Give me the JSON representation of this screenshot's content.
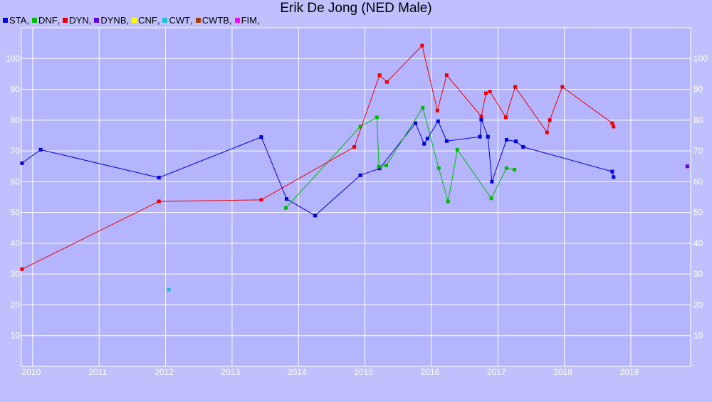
{
  "chart_data": {
    "type": "line",
    "title": "Erik De Jong (NED Male)",
    "xlabel": "",
    "ylabel": "",
    "xlim": [
      2009.83,
      2019.9
    ],
    "ylim": [
      0,
      110
    ],
    "x_ticks": [
      "2010",
      "2011",
      "2012",
      "2013",
      "2014",
      "2015",
      "2016",
      "2017",
      "2018",
      "2019"
    ],
    "y_ticks": [
      "10",
      "20",
      "30",
      "40",
      "50",
      "60",
      "70",
      "80",
      "90",
      "100"
    ],
    "grid": true,
    "legend_position": "top-left",
    "series": [
      {
        "name": "STA",
        "color": "#0000dd",
        "points": [
          [
            2009.84,
            66.0
          ],
          [
            2010.12,
            70.4
          ],
          [
            2011.9,
            61.3
          ],
          [
            2013.44,
            74.5
          ],
          [
            2013.82,
            54.4
          ],
          [
            2014.25,
            49.0
          ],
          [
            2014.93,
            62.1
          ],
          [
            2015.22,
            64.3
          ],
          [
            2015.76,
            79.0
          ],
          [
            2015.89,
            72.3
          ],
          [
            2015.94,
            74.0
          ],
          [
            2016.1,
            79.6
          ],
          [
            2016.23,
            73.2
          ],
          [
            2016.73,
            74.6
          ],
          [
            2016.75,
            80.2
          ],
          [
            2016.85,
            74.6
          ],
          [
            2016.91,
            60.0
          ],
          [
            2017.13,
            73.6
          ],
          [
            2017.27,
            73.1
          ],
          [
            2017.38,
            71.3
          ],
          [
            2018.72,
            63.3
          ],
          [
            2018.74,
            61.5
          ]
        ]
      },
      {
        "name": "DNF",
        "color": "#00bb00",
        "points": [
          [
            2013.81,
            51.5
          ],
          [
            2014.93,
            77.9
          ],
          [
            2015.18,
            80.9
          ],
          [
            2015.21,
            64.9
          ],
          [
            2015.32,
            65.3
          ],
          [
            2015.87,
            84.0
          ],
          [
            2016.11,
            64.4
          ],
          [
            2016.25,
            53.6
          ],
          [
            2016.39,
            70.4
          ],
          [
            2016.9,
            54.6
          ],
          [
            2017.13,
            64.4
          ],
          [
            2017.25,
            63.9
          ]
        ]
      },
      {
        "name": "DYN",
        "color": "#ee0000",
        "points": [
          [
            2009.84,
            31.6
          ],
          [
            2011.9,
            53.6
          ],
          [
            2013.44,
            54.1
          ],
          [
            2014.84,
            71.3
          ],
          [
            2015.22,
            94.6
          ],
          [
            2015.33,
            92.4
          ],
          [
            2015.86,
            104.2
          ],
          [
            2016.09,
            83.1
          ],
          [
            2016.23,
            94.6
          ],
          [
            2016.75,
            81.2
          ],
          [
            2016.82,
            88.7
          ],
          [
            2016.88,
            89.3
          ],
          [
            2017.12,
            80.9
          ],
          [
            2017.26,
            90.8
          ],
          [
            2017.74,
            76.0
          ],
          [
            2017.78,
            80.0
          ],
          [
            2017.97,
            90.8
          ],
          [
            2018.72,
            79.0
          ],
          [
            2018.74,
            77.9
          ]
        ]
      },
      {
        "name": "DYNB",
        "color": "#6000e0",
        "points": [
          [
            2019.85,
            65.0
          ]
        ]
      },
      {
        "name": "CNF",
        "color": "#ffff00",
        "points": []
      },
      {
        "name": "CWT",
        "color": "#20c0d0",
        "points": [
          [
            2012.05,
            24.9
          ]
        ]
      },
      {
        "name": "CWTB",
        "color": "#a04000",
        "points": []
      },
      {
        "name": "FIM",
        "color": "#ff00ff",
        "points": []
      }
    ]
  }
}
